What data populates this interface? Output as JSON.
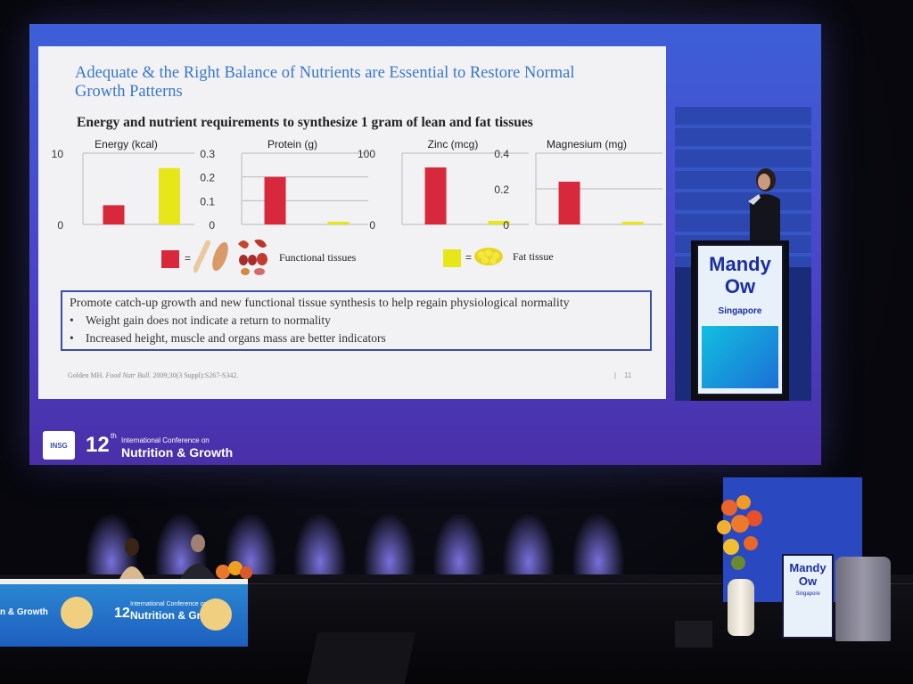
{
  "slide": {
    "title": "Adequate & the Right Balance of Nutrients are Essential to Restore Normal Growth Patterns",
    "subtitle": "Energy and nutrient requirements to synthesize 1 gram of lean and fat tissues",
    "legend": {
      "functional_label": "Functional tissues",
      "fat_label": "Fat tissue",
      "eq": "=",
      "functional_color": "#d8283c",
      "fat_color": "#e6e619"
    },
    "callout": {
      "main": "Promote catch-up growth and new functional tissue synthesis to help regain physiological normality",
      "bullets": [
        "Weight gain does not indicate a return to normality",
        "Increased height, muscle and organs mass are better indicators"
      ],
      "bullet_mark": "•"
    },
    "reference_author": "Golden MH.",
    "reference_journal": "Food Nutr Bull.",
    "reference_rest": "2009;30(3 Suppl):S267-S342.",
    "page_number": "11"
  },
  "chart_data": [
    {
      "type": "bar",
      "title": "Energy (kcal)",
      "categories": [
        "Functional tissues",
        "Fat tissue"
      ],
      "values": [
        2.7,
        7.9
      ],
      "ylim": [
        0,
        10
      ],
      "ticks": [
        "10",
        "0"
      ]
    },
    {
      "type": "bar",
      "title": "Protein (g)",
      "categories": [
        "Functional tissues",
        "Fat tissue"
      ],
      "values": [
        0.2,
        0.01
      ],
      "ylim": [
        0,
        0.3
      ],
      "ticks": [
        "0.3",
        "0.2",
        "0.1",
        "0"
      ]
    },
    {
      "type": "bar",
      "title": "Zinc (mcg)",
      "categories": [
        "Functional tissues",
        "Fat tissue"
      ],
      "values": [
        80,
        5
      ],
      "ylim": [
        0,
        100
      ],
      "ticks": [
        "100",
        "0"
      ]
    },
    {
      "type": "bar",
      "title": "Magnesium (mg)",
      "categories": [
        "Functional tissues",
        "Fat tissue"
      ],
      "values": [
        0.24,
        0.012
      ],
      "ylim": [
        0,
        0.4
      ],
      "ticks": [
        "0.4",
        "0.2",
        "0"
      ]
    }
  ],
  "conference": {
    "logo_text": "INSG",
    "number": "12",
    "suffix": "th",
    "line1": "International Conference on",
    "line2": "Nutrition & Growth"
  },
  "speaker": {
    "name_line1": "Mandy",
    "name_line2": "Ow",
    "city": "Singapore"
  },
  "stage": {
    "table_number": "12",
    "table_small": "International Conference on",
    "table_big": "Nutrition & Growth",
    "table_left": "n & Growth",
    "podium_name_line1": "Mandy",
    "podium_name_line2": "Ow",
    "podium_city": "Singapore"
  },
  "colors": {
    "screen_blue": "#3d5fd8",
    "screen_purple": "#4a2fa8",
    "title_blue": "#3a77c8",
    "callout_border": "#3b4fa3",
    "sign_text": "#1c2fa0"
  }
}
